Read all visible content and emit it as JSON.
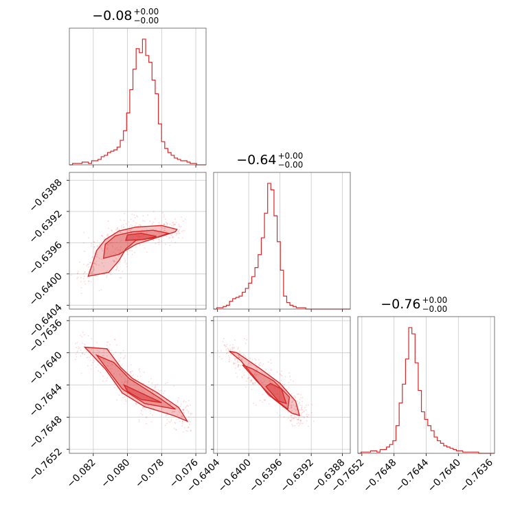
{
  "chart_data": {
    "type": "corner",
    "color": "#d62728",
    "parameters": [
      {
        "title_main": "−0.08",
        "title_sup": "+0.00",
        "title_sub": "−0.00",
        "range": [
          -0.0834,
          -0.0754
        ],
        "ticks": [
          -0.082,
          -0.08,
          -0.078,
          -0.076
        ],
        "tick_labels": [
          "−0.082",
          "−0.080",
          "−0.078",
          "−0.076"
        ],
        "hist_counts": [
          0,
          1,
          1,
          1,
          2,
          2,
          1,
          3,
          3,
          4,
          6,
          7,
          9,
          10,
          11,
          13,
          18,
          25,
          38,
          55,
          70,
          85,
          82,
          92,
          80,
          75,
          62,
          52,
          30,
          17,
          12,
          9,
          7,
          5,
          4,
          3,
          3,
          2,
          1,
          1,
          0,
          0,
          0
        ]
      },
      {
        "title_main": "−0.64",
        "title_sup": "+0.00",
        "title_sub": "−0.00",
        "range": [
          -0.64045,
          -0.6387
        ],
        "ticks": [
          -0.6404,
          -0.64,
          -0.6396,
          -0.6392,
          -0.6388
        ],
        "tick_labels": [
          "−0.6404",
          "−0.6400",
          "−0.6396",
          "−0.6392",
          "−0.6388"
        ],
        "hist_counts": [
          0,
          1,
          1,
          2,
          3,
          6,
          8,
          9,
          10,
          13,
          16,
          20,
          25,
          32,
          42,
          55,
          74,
          97,
          92,
          72,
          52,
          30,
          10,
          5,
          3,
          2,
          1,
          1,
          1,
          0,
          0,
          0,
          0,
          0,
          0,
          0,
          0,
          0,
          0,
          0,
          0,
          0,
          0
        ]
      },
      {
        "title_main": "−0.76",
        "title_sup": "+0.00",
        "title_sub": "−0.00",
        "range": [
          -0.76525,
          -0.76355
        ],
        "ticks": [
          -0.7652,
          -0.7648,
          -0.7644,
          -0.764,
          -0.7636
        ],
        "tick_labels": [
          "−0.7652",
          "−0.7648",
          "−0.7644",
          "−0.7640",
          "−0.7636"
        ],
        "hist_counts": [
          0,
          1,
          1,
          1,
          2,
          2,
          1,
          3,
          3,
          5,
          7,
          10,
          22,
          40,
          55,
          75,
          100,
          95,
          72,
          50,
          33,
          27,
          22,
          18,
          13,
          10,
          8,
          6,
          5,
          4,
          3,
          2,
          2,
          1,
          1,
          1,
          1,
          1,
          0,
          0,
          0,
          0,
          0
        ]
      }
    ],
    "pairs": [
      {
        "row": 1,
        "col": 0,
        "contour_outer": [
          [
            -0.0823,
            -0.64003
          ],
          [
            -0.0811,
            -0.63998
          ],
          [
            -0.0805,
            -0.63983
          ],
          [
            -0.0801,
            -0.63968
          ],
          [
            -0.0795,
            -0.63957
          ],
          [
            -0.0782,
            -0.63953
          ],
          [
            -0.0772,
            -0.63946
          ],
          [
            -0.0771,
            -0.63943
          ],
          [
            -0.078,
            -0.63938
          ],
          [
            -0.0795,
            -0.6394
          ],
          [
            -0.0805,
            -0.63945
          ],
          [
            -0.0813,
            -0.63956
          ],
          [
            -0.0818,
            -0.6397
          ],
          [
            -0.0821,
            -0.6399
          ]
        ],
        "contour_mid": [
          [
            -0.0814,
            -0.6398
          ],
          [
            -0.0805,
            -0.63975
          ],
          [
            -0.0795,
            -0.63962
          ],
          [
            -0.0785,
            -0.63955
          ],
          [
            -0.0776,
            -0.63948
          ],
          [
            -0.0785,
            -0.63944
          ],
          [
            -0.0797,
            -0.63946
          ],
          [
            -0.0807,
            -0.63951
          ],
          [
            -0.0813,
            -0.63962
          ]
        ],
        "contour_inner": [
          [
            -0.0801,
            -0.63957
          ],
          [
            -0.0791,
            -0.63956
          ],
          [
            -0.0783,
            -0.63952
          ],
          [
            -0.0792,
            -0.63948
          ],
          [
            -0.08,
            -0.6395
          ]
        ]
      },
      {
        "row": 2,
        "col": 0,
        "contour_outer": [
          [
            -0.0825,
            -0.76393
          ],
          [
            -0.0812,
            -0.76395
          ],
          [
            -0.0804,
            -0.76418
          ],
          [
            -0.0797,
            -0.76432
          ],
          [
            -0.0783,
            -0.76449
          ],
          [
            -0.077,
            -0.76468
          ],
          [
            -0.0765,
            -0.76485
          ],
          [
            -0.0773,
            -0.76478
          ],
          [
            -0.079,
            -0.76467
          ],
          [
            -0.0803,
            -0.7645
          ],
          [
            -0.0813,
            -0.7642
          ],
          [
            -0.0821,
            -0.76402
          ]
        ],
        "contour_mid": [
          [
            -0.0818,
            -0.76403
          ],
          [
            -0.0808,
            -0.76412
          ],
          [
            -0.0799,
            -0.76432
          ],
          [
            -0.0782,
            -0.76455
          ],
          [
            -0.0772,
            -0.7647
          ],
          [
            -0.079,
            -0.76463
          ],
          [
            -0.0803,
            -0.76445
          ],
          [
            -0.0812,
            -0.7642
          ]
        ],
        "contour_inner": [
          [
            -0.0802,
            -0.7644
          ],
          [
            -0.079,
            -0.76452
          ],
          [
            -0.078,
            -0.76462
          ],
          [
            -0.0792,
            -0.76458
          ],
          [
            -0.08,
            -0.76448
          ]
        ]
      },
      {
        "row": 2,
        "col": 1,
        "contour_outer": [
          [
            -0.64025,
            -0.76398
          ],
          [
            -0.6401,
            -0.7641
          ],
          [
            -0.63993,
            -0.7643
          ],
          [
            -0.63975,
            -0.76452
          ],
          [
            -0.63945,
            -0.76475
          ],
          [
            -0.63935,
            -0.76478
          ],
          [
            -0.6394,
            -0.7646
          ],
          [
            -0.6396,
            -0.76438
          ],
          [
            -0.63985,
            -0.7642
          ],
          [
            -0.64015,
            -0.764
          ]
        ],
        "contour_mid": [
          [
            -0.64008,
            -0.76415
          ],
          [
            -0.6399,
            -0.76435
          ],
          [
            -0.6397,
            -0.76455
          ],
          [
            -0.6395,
            -0.7647
          ],
          [
            -0.63948,
            -0.76455
          ],
          [
            -0.63968,
            -0.76435
          ],
          [
            -0.63995,
            -0.7642
          ]
        ],
        "contour_inner": [
          [
            -0.63978,
            -0.76442
          ],
          [
            -0.63962,
            -0.7646
          ],
          [
            -0.63952,
            -0.76463
          ],
          [
            -0.63958,
            -0.76445
          ],
          [
            -0.63972,
            -0.76438
          ]
        ]
      }
    ]
  }
}
